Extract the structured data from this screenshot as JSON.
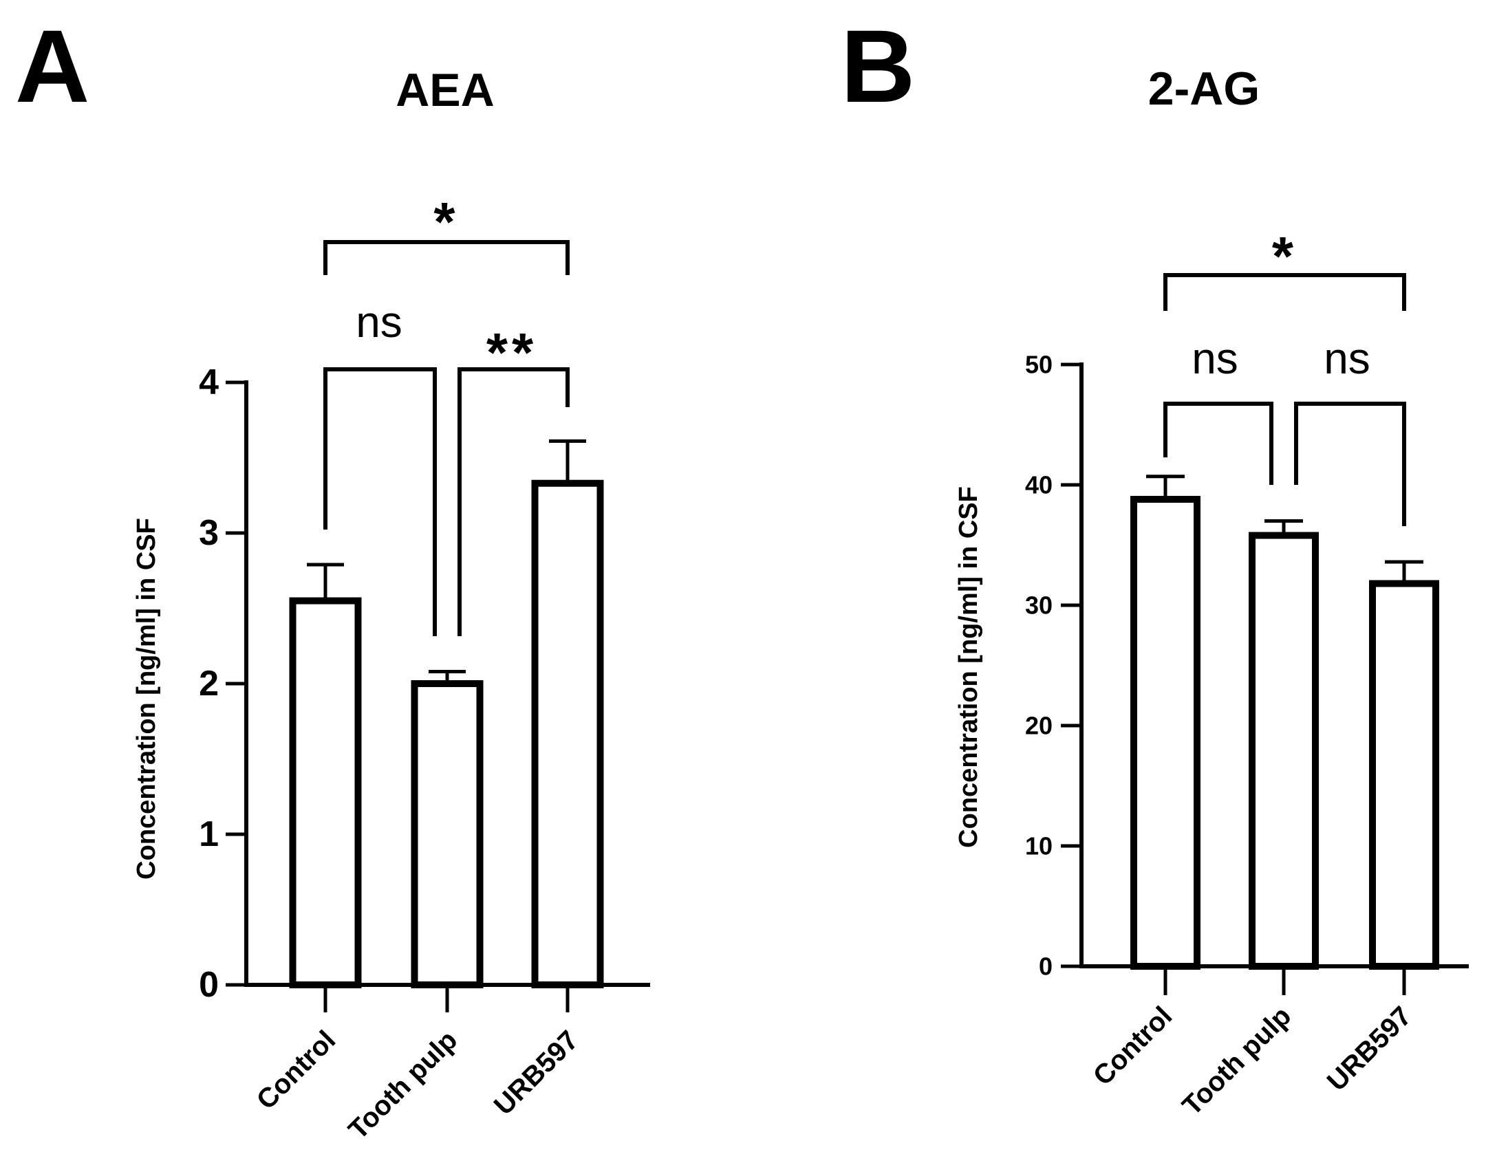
{
  "panels": [
    "A",
    "B"
  ],
  "chart_data": [
    {
      "type": "bar",
      "panel": "A",
      "title": "AEA",
      "xlabel": "",
      "ylabel": "Concentration [ng/ml] in CSF",
      "categories": [
        "Control",
        "Tooth pulp",
        "URB597"
      ],
      "values": [
        2.55,
        2.0,
        3.33
      ],
      "errors": [
        0.24,
        0.08,
        0.28
      ],
      "ylim": [
        0,
        4
      ],
      "yticks": [
        0,
        1,
        2,
        3,
        4
      ],
      "legend": "none",
      "grid": false,
      "comparisons": [
        {
          "from": 0,
          "to": 2,
          "label": "*"
        },
        {
          "from": 0,
          "to": 1,
          "label": "ns"
        },
        {
          "from": 1,
          "to": 2,
          "label": "**"
        }
      ]
    },
    {
      "type": "bar",
      "panel": "B",
      "title": "2-AG",
      "xlabel": "",
      "ylabel": "Concentration [ng/ml] in CSF",
      "categories": [
        "Control",
        "Tooth pulp",
        "URB597"
      ],
      "values": [
        38.8,
        35.8,
        31.8
      ],
      "errors": [
        1.9,
        1.2,
        1.8
      ],
      "ylim": [
        0,
        50
      ],
      "yticks": [
        0,
        10,
        20,
        30,
        40,
        50
      ],
      "legend": "none",
      "grid": false,
      "comparisons": [
        {
          "from": 0,
          "to": 2,
          "label": "*"
        },
        {
          "from": 0,
          "to": 1,
          "label": "ns"
        },
        {
          "from": 1,
          "to": 2,
          "label": "ns"
        }
      ]
    }
  ]
}
